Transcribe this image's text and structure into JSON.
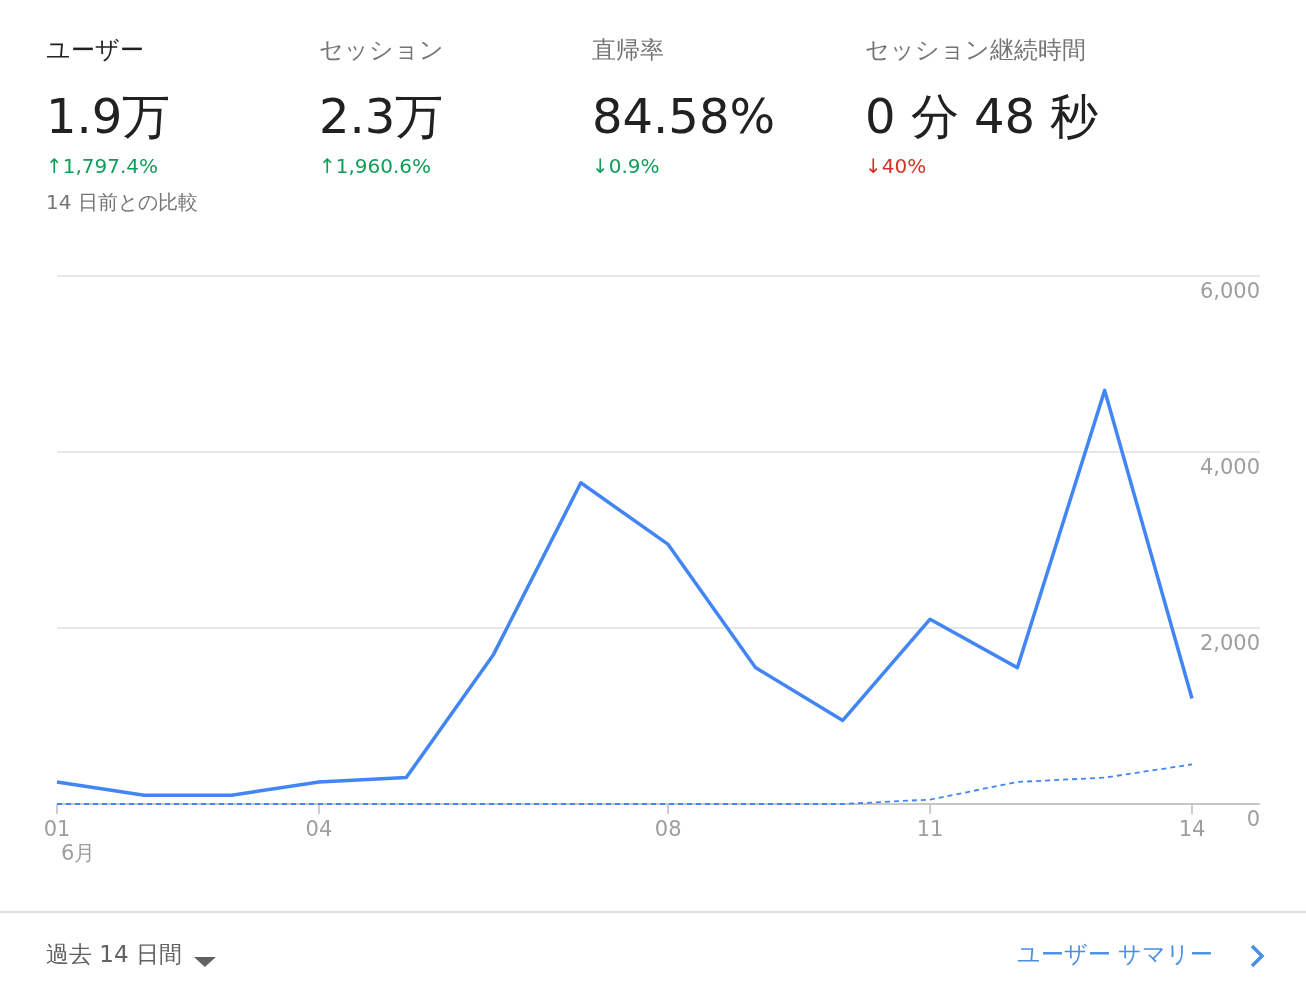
{
  "chart_data": [
    {
      "type": "other",
      "annotations": [
        "ユーザー",
        "1.9万",
        "↑1,797.4%",
        "セッション",
        "2.3万",
        "↑1,960.6%",
        "直帰率",
        "84.58%",
        "↓0.9%",
        "セッション継続時間",
        "0 分 48 秒",
        "↓40%",
        "14 日前との比較"
      ],
      "colors": [
        "#0f9d58",
        "#0f9d58",
        "#0f9d58",
        "#d93025"
      ]
    },
    {
      "type": "line",
      "categories": [
        "01",
        null,
        null,
        "04",
        null,
        null,
        null,
        "08",
        null,
        null,
        "11",
        null,
        null,
        "14"
      ],
      "series": [
        {
          "color": "#4285f4",
          "line_style": "solid",
          "values": [
            250,
            100,
            100,
            250,
            300,
            1700,
            3650,
            2950,
            1550,
            950,
            2100,
            1550,
            4700,
            1200
          ]
        },
        {
          "color": "#4285f4",
          "line_style": "dashed",
          "values": [
            0,
            0,
            0,
            0,
            0,
            0,
            0,
            0,
            0,
            0,
            50,
            250,
            300,
            450
          ]
        }
      ],
      "ylim": [
        0,
        6000
      ],
      "yticks": [
        0,
        {
          "value": 2000,
          "label": "2,000"
        },
        {
          "value": 4000,
          "label": "4,000"
        },
        {
          "value": 6000,
          "label": "6,000"
        }
      ],
      "grid": "y",
      "marker": "none",
      "annotations": [
        "6月",
        "過去 14 日間",
        "ユーザー サマリー"
      ]
    }
  ]
}
